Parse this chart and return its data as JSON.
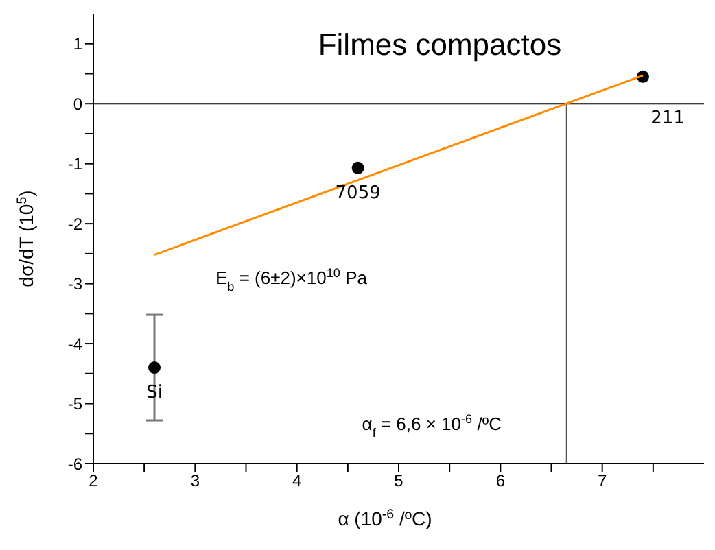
{
  "chart_data": {
    "type": "scatter",
    "title": "Filmes compactos",
    "xlabel": "α (10$^{-6}$ /ºC)",
    "ylabel": "dσ/dT (10$^{5}$)",
    "xlim": [
      2,
      8
    ],
    "xticks": [
      2,
      {
        "value": 2.5,
        "label": null
      },
      3,
      {
        "value": 3.5,
        "label": null
      },
      4,
      {
        "value": 4.5,
        "label": null
      },
      5,
      {
        "value": 5.5,
        "label": null
      },
      6,
      {
        "value": 6.5,
        "label": null
      },
      7,
      {
        "value": 7.5,
        "label": null
      }
    ],
    "ylim": [
      -6,
      1.5
    ],
    "yticks": [
      -6,
      {
        "value": -5.5,
        "label": null
      },
      -5,
      {
        "value": -4.5,
        "label": null
      },
      -4,
      {
        "value": -3.5,
        "label": null
      },
      -3,
      {
        "value": -2.5,
        "label": null
      },
      -2,
      {
        "value": -1.5,
        "label": null
      },
      -1,
      {
        "value": -0.5,
        "label": null
      },
      0,
      {
        "value": 0.5,
        "label": null
      },
      1
    ],
    "series": [
      {
        "marker": "circle",
        "color": "#000000",
        "x": [
          2.6,
          4.6,
          7.4
        ],
        "values": [
          -4.4,
          -1.07,
          0.45
        ],
        "errors": [
          0.88,
          null,
          null
        ]
      },
      {
        "type": "line",
        "color": "#ff8c00",
        "x": [
          2.6,
          7.4
        ],
        "values": [
          -2.52,
          0.47
        ]
      }
    ],
    "ref_lines": [
      {
        "axis": "y",
        "value": 0,
        "color": "#000000"
      },
      {
        "axis": "x",
        "value": 6.65,
        "color": "#555555"
      }
    ],
    "annotations": [
      {
        "text": "Si",
        "x": 2.6,
        "y": -4.4
      },
      {
        "text": "7059",
        "x": 4.6,
        "y": -1.07
      },
      {
        "text": "211",
        "x": 7.4,
        "y": 0.45
      },
      "E$_{b}$ = (6±2)×10$^{10}$ Pa",
      "α$_{f}$ = 6,6 × 10$^{-6}$ /ºC"
    ]
  }
}
